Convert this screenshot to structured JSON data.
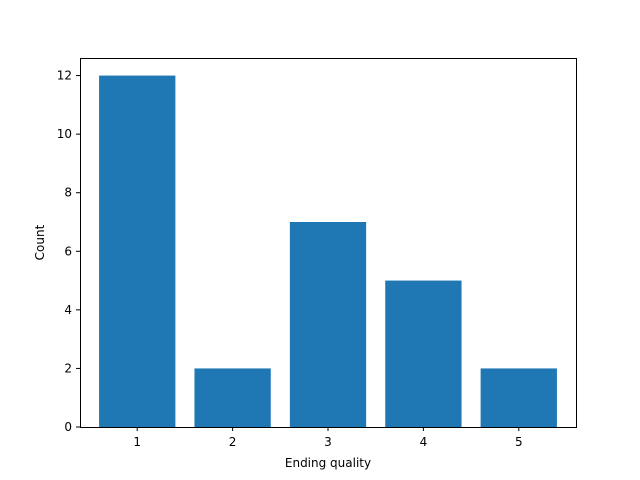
{
  "chart_data": {
    "type": "bar",
    "categories": [
      "1",
      "2",
      "3",
      "4",
      "5"
    ],
    "values": [
      12,
      2,
      7,
      5,
      2
    ],
    "title": "",
    "xlabel": "Ending quality",
    "ylabel": "Count",
    "ylim": [
      0,
      12.6
    ],
    "yticks": [
      "0",
      "2",
      "4",
      "6",
      "8",
      "10",
      "12"
    ],
    "bar_color": "#1f77b4",
    "grid": false
  }
}
